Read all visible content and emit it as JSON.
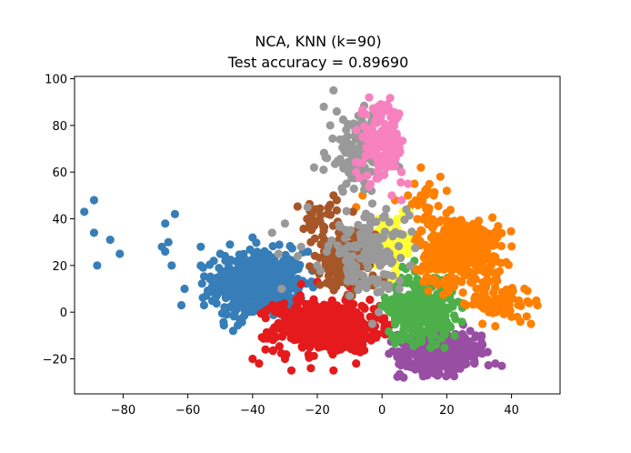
{
  "chart_data": {
    "type": "scatter",
    "title": "NCA, KNN (k=90)",
    "subtitle": "Test accuracy = 0.89690",
    "xlabel": "",
    "ylabel": "",
    "xlim": [
      -95,
      55
    ],
    "ylim": [
      -35,
      101
    ],
    "xticks": [
      -80,
      -60,
      -40,
      -20,
      0,
      20,
      40
    ],
    "xtick_labels": [
      "−80",
      "−60",
      "−40",
      "−20",
      "0",
      "20",
      "40"
    ],
    "yticks": [
      -20,
      0,
      20,
      40,
      60,
      80,
      100
    ],
    "ytick_labels": [
      "−20",
      "0",
      "20",
      "40",
      "60",
      "80",
      "100"
    ],
    "grid": false,
    "legend": "none",
    "colors": [
      "#377eb8",
      "#e41a1c",
      "#984ea3",
      "#4daf4a",
      "#ff7f00",
      "#ffff33",
      "#a65628",
      "#999999",
      "#f781bf"
    ],
    "series": [
      {
        "color": "#377eb8",
        "clusters": [
          {
            "cx": -38,
            "cy": 12,
            "sx": 7,
            "sy": 7,
            "n": 520
          }
        ],
        "points": [
          [
            -89,
            48
          ],
          [
            -92,
            43
          ],
          [
            -89,
            34
          ],
          [
            -84,
            31
          ],
          [
            -81,
            25
          ],
          [
            -88,
            20
          ],
          [
            -67,
            38
          ],
          [
            -64,
            42
          ],
          [
            -68,
            28
          ],
          [
            -66,
            30
          ],
          [
            -67,
            26
          ],
          [
            -65,
            20
          ],
          [
            -61,
            10
          ],
          [
            -62,
            3
          ],
          [
            -55,
            3
          ],
          [
            -48,
            -1
          ],
          [
            -44,
            -3
          ],
          [
            -46,
            -8
          ],
          [
            -56,
            28
          ],
          [
            -47,
            29
          ],
          [
            -40,
            32
          ],
          [
            -52,
            22
          ],
          [
            -50,
            25
          ]
        ]
      },
      {
        "color": "#e41a1c",
        "clusters": [
          {
            "cx": -17,
            "cy": -6,
            "sx": 8,
            "sy": 5.5,
            "n": 520
          }
        ],
        "points": [
          [
            -28,
            -25
          ],
          [
            -22,
            -24
          ],
          [
            -15,
            -25
          ],
          [
            -8,
            -22
          ],
          [
            -36,
            -16
          ],
          [
            -30,
            -20
          ],
          [
            -25,
            12
          ],
          [
            -20,
            13
          ],
          [
            -10,
            11
          ],
          [
            -6,
            -14
          ],
          [
            -3,
            -10
          ],
          [
            -40,
            -20
          ],
          [
            -38,
            -22
          ]
        ]
      },
      {
        "color": "#984ea3",
        "clusters": [
          {
            "cx": 18,
            "cy": -17,
            "sx": 6.5,
            "sy": 4.5,
            "n": 340
          }
        ],
        "points": [
          [
            37,
            -23
          ],
          [
            35,
            -22
          ],
          [
            31,
            -14
          ],
          [
            29,
            -10
          ],
          [
            7,
            -14
          ],
          [
            11,
            -22
          ],
          [
            14,
            -27
          ],
          [
            22,
            -26
          ]
        ]
      },
      {
        "color": "#4daf4a",
        "clusters": [
          {
            "cx": 12,
            "cy": 2,
            "sx": 5,
            "sy": 7,
            "n": 360
          }
        ],
        "points": [
          [
            10,
            22
          ],
          [
            14,
            20
          ],
          [
            18,
            12
          ],
          [
            20,
            2
          ],
          [
            6,
            -12
          ],
          [
            10,
            -14
          ],
          [
            4,
            -4
          ]
        ]
      },
      {
        "color": "#ff7f00",
        "clusters": [
          {
            "cx": 24,
            "cy": 26,
            "sx": 6.5,
            "sy": 7.5,
            "n": 420
          },
          {
            "cx": 37,
            "cy": 5,
            "sx": 5,
            "sy": 3.5,
            "n": 70
          },
          {
            "cx": 13,
            "cy": 44,
            "sx": 3,
            "sy": 6,
            "n": 30
          }
        ],
        "points": [
          [
            48,
            3
          ],
          [
            46,
            -5
          ],
          [
            40,
            -2
          ],
          [
            35,
            -6
          ],
          [
            12,
            62
          ],
          [
            10,
            55
          ],
          [
            20,
            52
          ],
          [
            18,
            58
          ],
          [
            16,
            50
          ],
          [
            8,
            50
          ],
          [
            4,
            48
          ],
          [
            -6,
            50
          ],
          [
            -8,
            45
          ],
          [
            31,
            -5
          ],
          [
            33,
            0
          ],
          [
            26,
            3
          ],
          [
            44,
            10
          ]
        ]
      },
      {
        "color": "#ffff33",
        "clusters": [
          {
            "cx": 3,
            "cy": 30,
            "sx": 2.5,
            "sy": 6,
            "n": 90
          }
        ],
        "points": [
          [
            6,
            40
          ],
          [
            1,
            36
          ],
          [
            -1,
            40
          ],
          [
            2,
            24
          ],
          [
            4,
            18
          ],
          [
            6,
            32
          ],
          [
            0,
            30
          ],
          [
            3,
            14
          ]
        ]
      },
      {
        "color": "#a65628",
        "clusters": [
          {
            "cx": -11,
            "cy": 22,
            "sx": 4.5,
            "sy": 6,
            "n": 230
          },
          {
            "cx": -20,
            "cy": 40,
            "sx": 3,
            "sy": 3,
            "n": 28
          }
        ],
        "points": [
          [
            -15,
            50
          ],
          [
            -14,
            48
          ],
          [
            -16,
            46
          ],
          [
            -9,
            43
          ],
          [
            -18,
            35
          ],
          [
            -22,
            30
          ]
        ]
      },
      {
        "color": "#999999",
        "clusters": [
          {
            "cx": -7,
            "cy": 68,
            "sx": 5,
            "sy": 8,
            "n": 130
          },
          {
            "cx": -4,
            "cy": 26,
            "sx": 6,
            "sy": 8,
            "n": 150
          }
        ],
        "points": [
          [
            -15,
            95
          ],
          [
            -18,
            88
          ],
          [
            -14,
            86
          ],
          [
            -16,
            80
          ],
          [
            -9,
            80
          ],
          [
            -13,
            74
          ],
          [
            -17,
            66
          ],
          [
            -21,
            62
          ],
          [
            -11,
            55
          ],
          [
            -30,
            38
          ],
          [
            -34,
            34
          ],
          [
            -32,
            25
          ],
          [
            -31,
            10
          ],
          [
            -25,
            28
          ],
          [
            -26,
            24
          ],
          [
            -20,
            20
          ],
          [
            -23,
            45
          ],
          [
            -3,
            -5
          ],
          [
            -1,
            0
          ],
          [
            2,
            10
          ],
          [
            -10,
            7
          ]
        ]
      },
      {
        "color": "#f781bf",
        "clusters": [
          {
            "cx": 0,
            "cy": 72,
            "sx": 3.5,
            "sy": 8,
            "n": 140
          }
        ],
        "points": [
          [
            -4,
            92
          ],
          [
            -2,
            86
          ],
          [
            2,
            88
          ],
          [
            4,
            82
          ],
          [
            1,
            80
          ],
          [
            5,
            70
          ],
          [
            6,
            60
          ],
          [
            8,
            55
          ],
          [
            -6,
            64
          ],
          [
            -8,
            60
          ],
          [
            3,
            50
          ],
          [
            6,
            48
          ]
        ]
      }
    ]
  }
}
